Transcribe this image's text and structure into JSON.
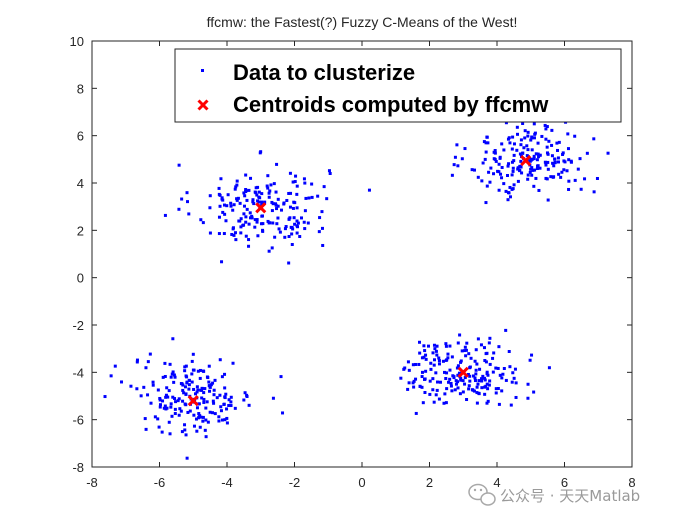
{
  "chart_data": {
    "type": "scatter",
    "title": "ffcmw: the Fastest(?) Fuzzy C-Means of the West!",
    "xlabel": "",
    "ylabel": "",
    "xlim": [
      -8,
      8
    ],
    "ylim": [
      -8,
      10
    ],
    "xticks": [
      "-8",
      "-6",
      "-4",
      "-2",
      "0",
      "2",
      "4",
      "6",
      "8"
    ],
    "yticks": [
      "-8",
      "-6",
      "-4",
      "-2",
      "0",
      "2",
      "4",
      "6",
      "8",
      "10"
    ],
    "grid": false,
    "legend_position": "top-right",
    "series": [
      {
        "name": "Data to clusterize",
        "color": "#0000ff",
        "marker": "point",
        "clusters": [
          {
            "center": [
              -3,
              3
            ],
            "spread": [
              1.0,
              0.9
            ],
            "count": 200
          },
          {
            "center": [
              5,
              5
            ],
            "spread": [
              0.9,
              0.8
            ],
            "count": 200
          },
          {
            "center": [
              -5,
              -5
            ],
            "spread": [
              0.9,
              0.8
            ],
            "count": 200
          },
          {
            "center": [
              3,
              -4
            ],
            "spread": [
              0.9,
              0.7
            ],
            "count": 200
          }
        ]
      },
      {
        "name": "Centroids computed by ffcmw",
        "color": "#ff0000",
        "marker": "x",
        "points": [
          [
            -3.0,
            2.95
          ],
          [
            4.85,
            4.95
          ],
          [
            -5.0,
            -5.2
          ],
          [
            3.0,
            -4.0
          ]
        ]
      }
    ]
  },
  "watermark": {
    "icon": "wechat-icon",
    "text": "公众号 · 天天Matlab"
  }
}
